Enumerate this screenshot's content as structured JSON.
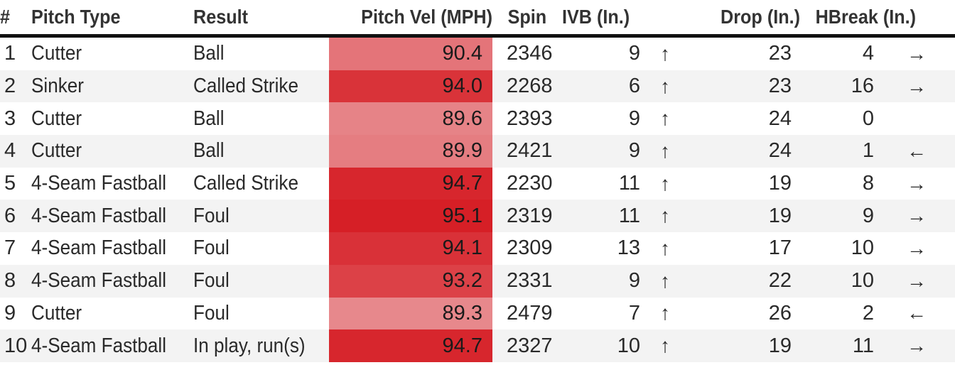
{
  "columns": {
    "num": "#",
    "pitch_type": "Pitch Type",
    "result": "Result",
    "velocity": "Pitch Vel (MPH)",
    "spin": "Spin",
    "ivb": "IVB (In.)",
    "drop": "Drop (In.)",
    "hbreak": "HBreak (In.)"
  },
  "colors": {
    "velocity_scale_low": "#e7888c",
    "velocity_scale_high": "#d61f26",
    "header_rule": "#111111",
    "stripe": "#f3f3f3"
  },
  "velocity_scale": {
    "min": 89.3,
    "max": 95.1
  },
  "rows": [
    {
      "num": "1",
      "pitch_type": "Cutter",
      "result": "Ball",
      "velocity": "90.4",
      "spin": "2346",
      "ivb": "9",
      "ivb_arrow": "↑",
      "drop": "23",
      "hbreak": "4",
      "hbreak_arrow": "→"
    },
    {
      "num": "2",
      "pitch_type": "Sinker",
      "result": "Called Strike",
      "velocity": "94.0",
      "spin": "2268",
      "ivb": "6",
      "ivb_arrow": "↑",
      "drop": "23",
      "hbreak": "16",
      "hbreak_arrow": "→"
    },
    {
      "num": "3",
      "pitch_type": "Cutter",
      "result": "Ball",
      "velocity": "89.6",
      "spin": "2393",
      "ivb": "9",
      "ivb_arrow": "↑",
      "drop": "24",
      "hbreak": "0",
      "hbreak_arrow": ""
    },
    {
      "num": "4",
      "pitch_type": "Cutter",
      "result": "Ball",
      "velocity": "89.9",
      "spin": "2421",
      "ivb": "9",
      "ivb_arrow": "↑",
      "drop": "24",
      "hbreak": "1",
      "hbreak_arrow": "←"
    },
    {
      "num": "5",
      "pitch_type": "4-Seam Fastball",
      "result": "Called Strike",
      "velocity": "94.7",
      "spin": "2230",
      "ivb": "11",
      "ivb_arrow": "↑",
      "drop": "19",
      "hbreak": "8",
      "hbreak_arrow": "→"
    },
    {
      "num": "6",
      "pitch_type": "4-Seam Fastball",
      "result": "Foul",
      "velocity": "95.1",
      "spin": "2319",
      "ivb": "11",
      "ivb_arrow": "↑",
      "drop": "19",
      "hbreak": "9",
      "hbreak_arrow": "→"
    },
    {
      "num": "7",
      "pitch_type": "4-Seam Fastball",
      "result": "Foul",
      "velocity": "94.1",
      "spin": "2309",
      "ivb": "13",
      "ivb_arrow": "↑",
      "drop": "17",
      "hbreak": "10",
      "hbreak_arrow": "→"
    },
    {
      "num": "8",
      "pitch_type": "4-Seam Fastball",
      "result": "Foul",
      "velocity": "93.2",
      "spin": "2331",
      "ivb": "9",
      "ivb_arrow": "↑",
      "drop": "22",
      "hbreak": "10",
      "hbreak_arrow": "→"
    },
    {
      "num": "9",
      "pitch_type": "Cutter",
      "result": "Foul",
      "velocity": "89.3",
      "spin": "2479",
      "ivb": "7",
      "ivb_arrow": "↑",
      "drop": "26",
      "hbreak": "2",
      "hbreak_arrow": "←"
    },
    {
      "num": "10",
      "pitch_type": "4-Seam Fastball",
      "result": "In play, run(s)",
      "velocity": "94.7",
      "spin": "2327",
      "ivb": "10",
      "ivb_arrow": "↑",
      "drop": "19",
      "hbreak": "11",
      "hbreak_arrow": "→"
    }
  ]
}
